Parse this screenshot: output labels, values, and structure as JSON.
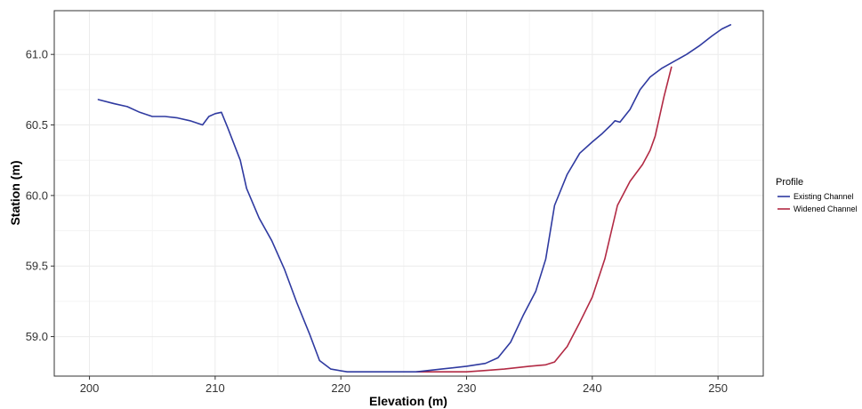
{
  "chart_data": {
    "type": "line",
    "xlabel": "Elevation (m)",
    "ylabel": "Station (m)",
    "xlim": [
      197.2,
      253.6
    ],
    "ylim": [
      58.72,
      61.31
    ],
    "xticks": [
      200,
      210,
      220,
      230,
      240,
      250
    ],
    "xtick_labels": [
      "200",
      "210",
      "220",
      "230",
      "240",
      "250"
    ],
    "yticks": [
      59.0,
      59.5,
      60.0,
      60.5,
      61.0
    ],
    "ytick_labels": [
      "59.0",
      "59.5",
      "60.0",
      "60.5",
      "61.0"
    ],
    "grid": true,
    "legend": {
      "title": "Profile",
      "placement": "right"
    },
    "series": [
      {
        "name": "Existing Channel",
        "color": "#2f3aa0",
        "x": [
          200.7,
          202.0,
          203.0,
          204.0,
          205.0,
          206.0,
          207.0,
          208.0,
          209.0,
          209.5,
          210.0,
          210.5,
          211.0,
          212.0,
          212.5,
          213.5,
          214.5,
          215.5,
          216.5,
          217.5,
          218.3,
          219.2,
          220.5,
          222.0,
          224.0,
          226.0,
          228.0,
          230.0,
          231.5,
          232.5,
          233.5,
          234.5,
          235.5,
          236.3,
          237.0,
          238.0,
          239.0,
          240.0,
          240.8,
          241.5,
          241.8,
          242.2,
          243.0,
          243.8,
          244.6,
          245.5,
          246.5,
          247.5,
          248.5,
          249.5,
          250.3,
          251.0
        ],
        "y": [
          60.68,
          60.65,
          60.63,
          60.59,
          60.56,
          60.56,
          60.55,
          60.53,
          60.5,
          60.56,
          60.58,
          60.59,
          60.48,
          60.25,
          60.05,
          59.84,
          59.68,
          59.48,
          59.24,
          59.02,
          58.83,
          58.77,
          58.75,
          58.75,
          58.75,
          58.75,
          58.77,
          58.79,
          58.81,
          58.85,
          58.96,
          59.15,
          59.32,
          59.55,
          59.93,
          60.15,
          60.3,
          60.38,
          60.44,
          60.5,
          60.53,
          60.52,
          60.61,
          60.75,
          60.84,
          60.9,
          60.95,
          61.0,
          61.06,
          61.13,
          61.18,
          61.21
        ]
      },
      {
        "name": "Widened Channel",
        "color": "#b22a44",
        "x": [
          226.0,
          228.0,
          230.0,
          231.5,
          233.0,
          235.0,
          236.3,
          237.0,
          238.0,
          239.0,
          240.0,
          241.0,
          242.0,
          243.0,
          244.0,
          244.6,
          245.0,
          245.7,
          246.3
        ],
        "y": [
          58.75,
          58.75,
          58.75,
          58.76,
          58.77,
          58.79,
          58.8,
          58.82,
          58.93,
          59.1,
          59.28,
          59.55,
          59.93,
          60.1,
          60.22,
          60.32,
          60.42,
          60.7,
          60.91
        ]
      }
    ]
  }
}
